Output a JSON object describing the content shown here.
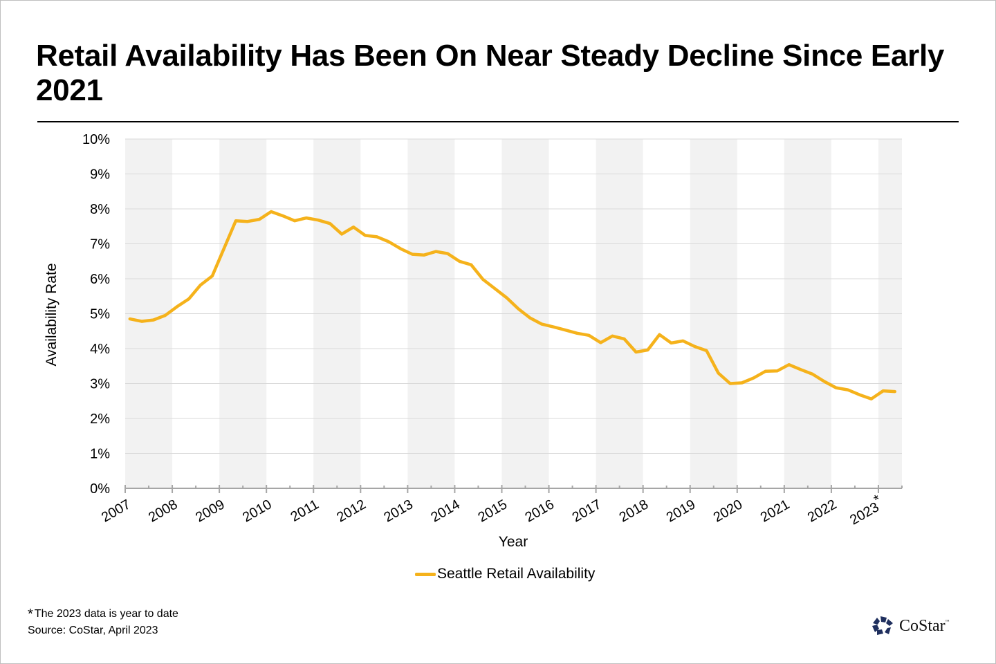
{
  "title": "Retail Availability Has Been On Near Steady Decline Since Early 2021",
  "legend": {
    "label": "Seattle Retail Availability",
    "color": "#f5b21b"
  },
  "footnote": {
    "star": "*",
    "text": "The 2023 data is year to date",
    "source": "Source: CoStar, April 2023"
  },
  "logo": {
    "name": "CoStar",
    "tm": "™",
    "color": "#1f2f5e"
  },
  "chart_data": {
    "type": "line",
    "title": "Retail Availability Has Been On Near Steady Decline Since Early 2021",
    "xlabel": "Year",
    "ylabel": "Availability Rate",
    "ylim": [
      0,
      10
    ],
    "xlim": [
      2007,
      2023.5
    ],
    "y_ticks": [
      "0%",
      "1%",
      "2%",
      "3%",
      "4%",
      "5%",
      "6%",
      "7%",
      "8%",
      "9%",
      "10%"
    ],
    "x_ticks": [
      "2007",
      "2008",
      "2009",
      "2010",
      "2011",
      "2012",
      "2013",
      "2014",
      "2015",
      "2016",
      "2017",
      "2018",
      "2019",
      "2020",
      "2021",
      "2022",
      "2023*"
    ],
    "grid": true,
    "alternating_year_bands": true,
    "legend_position": "bottom",
    "series": [
      {
        "name": "Seattle Retail Availability",
        "color": "#f5b21b",
        "x": [
          2007.1,
          2007.35,
          2007.6,
          2007.85,
          2008.1,
          2008.35,
          2008.6,
          2008.85,
          2009.1,
          2009.35,
          2009.6,
          2009.85,
          2010.1,
          2010.35,
          2010.6,
          2010.85,
          2011.1,
          2011.35,
          2011.6,
          2011.85,
          2012.1,
          2012.35,
          2012.6,
          2012.85,
          2013.1,
          2013.35,
          2013.6,
          2013.85,
          2014.1,
          2014.35,
          2014.6,
          2014.85,
          2015.1,
          2015.35,
          2015.6,
          2015.85,
          2016.1,
          2016.35,
          2016.6,
          2016.85,
          2017.1,
          2017.35,
          2017.6,
          2017.85,
          2018.1,
          2018.35,
          2018.6,
          2018.85,
          2019.1,
          2019.35,
          2019.6,
          2019.85,
          2020.1,
          2020.35,
          2020.6,
          2020.85,
          2021.1,
          2021.35,
          2021.6,
          2021.85,
          2022.1,
          2022.35,
          2022.6,
          2022.85,
          2023.1,
          2023.35
        ],
        "values": [
          4.85,
          4.78,
          4.82,
          4.95,
          5.2,
          5.42,
          5.82,
          6.08,
          6.87,
          7.66,
          7.64,
          7.7,
          7.92,
          7.8,
          7.66,
          7.74,
          7.68,
          7.58,
          7.28,
          7.48,
          7.24,
          7.2,
          7.06,
          6.86,
          6.7,
          6.68,
          6.78,
          6.72,
          6.5,
          6.4,
          5.98,
          5.72,
          5.46,
          5.14,
          4.88,
          4.7,
          4.62,
          4.53,
          4.44,
          4.38,
          4.17,
          4.36,
          4.28,
          3.9,
          3.96,
          4.4,
          4.16,
          4.22,
          4.06,
          3.94,
          3.3,
          3.0,
          3.02,
          3.16,
          3.35,
          3.36,
          3.54,
          3.4,
          3.27,
          3.06,
          2.88,
          2.82,
          2.68,
          2.56,
          2.79,
          2.77
        ]
      }
    ]
  }
}
